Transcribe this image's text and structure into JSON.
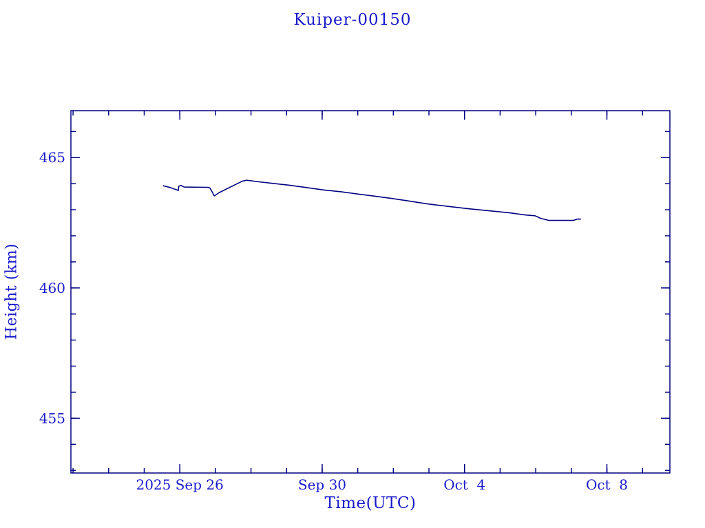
{
  "page": {
    "background": "#ffffff"
  },
  "chart_data": {
    "type": "line",
    "title": "Kuiper-00150",
    "xlabel": "Time(UTC)",
    "ylabel": "Height (km)",
    "x_axis_note": "days relative to 2025 Sep 26 00:00 UTC",
    "xlim": [
      -3.06,
      13.77
    ],
    "ylim": [
      452.9,
      466.8
    ],
    "grid": false,
    "legend": "none",
    "x_major_ticks": [
      {
        "value": 0,
        "label": "2025 Sep 26"
      },
      {
        "value": 4,
        "label": "Sep 30"
      },
      {
        "value": 8,
        "label": "Oct  4"
      },
      {
        "value": 12,
        "label": "Oct  8"
      }
    ],
    "x_minor_ticks": [
      -3,
      -2,
      -1,
      0,
      1,
      2,
      3,
      4,
      5,
      6,
      7,
      8,
      9,
      10,
      11,
      12,
      13
    ],
    "y_major_ticks": [
      {
        "value": 455,
        "label": "455"
      },
      {
        "value": 460,
        "label": "460"
      },
      {
        "value": 465,
        "label": "465"
      }
    ],
    "y_minor_ticks": [
      453,
      454,
      455,
      456,
      457,
      458,
      459,
      460,
      461,
      462,
      463,
      464,
      465,
      466
    ],
    "colors": {
      "frame": "#000080",
      "line": "#000080",
      "text": "#1a1acc",
      "background": "#ffffff"
    },
    "series": [
      {
        "name": "height",
        "color": "#000080",
        "points": [
          [
            -0.46,
            463.92
          ],
          [
            -0.27,
            463.85
          ],
          [
            -0.04,
            463.74
          ],
          [
            -0.03,
            463.9
          ],
          [
            0.04,
            463.93
          ],
          [
            0.12,
            463.87
          ],
          [
            0.8,
            463.86
          ],
          [
            0.85,
            463.83
          ],
          [
            0.97,
            463.53
          ],
          [
            1.1,
            463.65
          ],
          [
            1.33,
            463.81
          ],
          [
            1.57,
            463.97
          ],
          [
            1.76,
            464.1
          ],
          [
            1.88,
            464.13
          ],
          [
            2.01,
            464.11
          ],
          [
            2.3,
            464.06
          ],
          [
            2.69,
            464.0
          ],
          [
            3.08,
            463.94
          ],
          [
            3.56,
            463.85
          ],
          [
            4.04,
            463.76
          ],
          [
            4.53,
            463.69
          ],
          [
            5.01,
            463.6
          ],
          [
            5.49,
            463.52
          ],
          [
            5.98,
            463.43
          ],
          [
            6.46,
            463.33
          ],
          [
            6.94,
            463.23
          ],
          [
            7.52,
            463.13
          ],
          [
            8.1,
            463.04
          ],
          [
            8.69,
            462.96
          ],
          [
            9.27,
            462.88
          ],
          [
            9.71,
            462.8
          ],
          [
            9.98,
            462.77
          ],
          [
            10.14,
            462.67
          ],
          [
            10.37,
            462.59
          ],
          [
            11.06,
            462.59
          ],
          [
            11.16,
            462.64
          ],
          [
            11.26,
            462.64
          ]
        ]
      }
    ]
  }
}
